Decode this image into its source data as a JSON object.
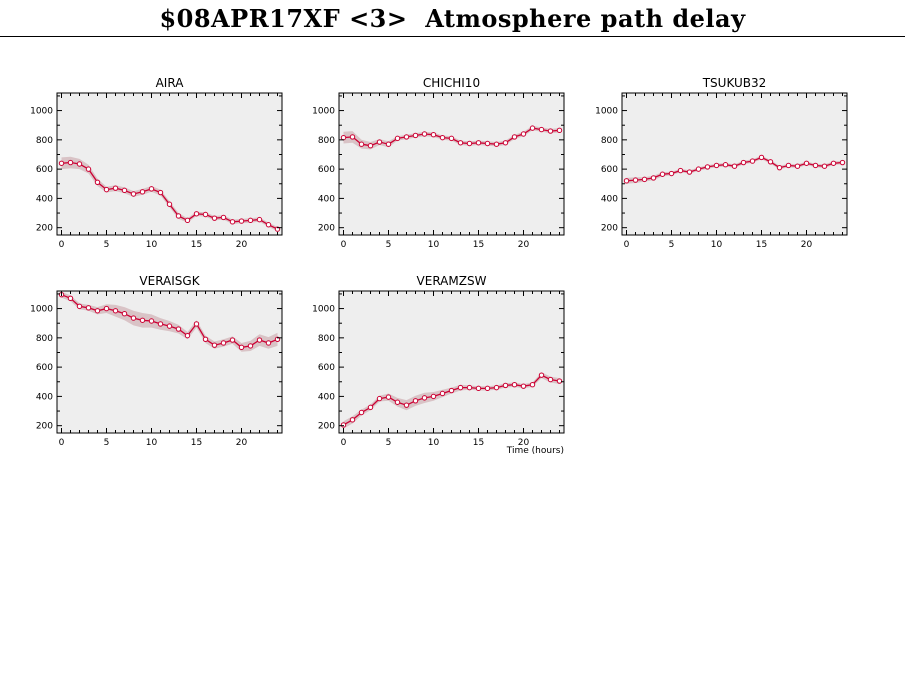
{
  "page": {
    "title": "$08APR17XF <3>  Atmosphere path delay",
    "xlabel": "Time (hours)"
  },
  "colors": {
    "panel_bg": "#eeeeee",
    "band": "#d9c3c6",
    "line": "#cc0033",
    "marker_fill": "#ffffff",
    "axis": "#000000"
  },
  "chart_data": [
    {
      "type": "line",
      "title": "AIRA",
      "xlim": [
        -0.5,
        24.5
      ],
      "ylim": [
        150,
        1120
      ],
      "xticks": [
        0,
        5,
        10,
        15,
        20
      ],
      "yticks": [
        200,
        400,
        600,
        800,
        1000
      ],
      "x": [
        0,
        1,
        2,
        3,
        4,
        5,
        6,
        7,
        8,
        9,
        10,
        11,
        12,
        13,
        14,
        15,
        16,
        17,
        18,
        19,
        20,
        21,
        22,
        23,
        24
      ],
      "series": [
        {
          "values": [
            640,
            645,
            635,
            600,
            510,
            460,
            470,
            455,
            430,
            445,
            465,
            440,
            360,
            280,
            250,
            295,
            290,
            265,
            270,
            240,
            245,
            250,
            255,
            220,
            190
          ],
          "band": [
            40,
            40,
            35,
            30,
            25,
            20,
            20,
            20,
            20,
            20,
            20,
            20,
            20,
            20,
            15,
            15,
            15,
            15,
            15,
            15,
            15,
            15,
            15,
            15,
            15
          ]
        }
      ]
    },
    {
      "type": "line",
      "title": "CHICHI10",
      "xlim": [
        -0.5,
        24.5
      ],
      "ylim": [
        150,
        1120
      ],
      "xticks": [
        0,
        5,
        10,
        15,
        20
      ],
      "yticks": [
        200,
        400,
        600,
        800,
        1000
      ],
      "x": [
        0,
        1,
        2,
        3,
        4,
        5,
        6,
        7,
        8,
        9,
        10,
        11,
        12,
        13,
        14,
        15,
        16,
        17,
        18,
        19,
        20,
        21,
        22,
        23,
        24
      ],
      "series": [
        {
          "values": [
            815,
            820,
            770,
            760,
            785,
            770,
            810,
            820,
            830,
            840,
            835,
            815,
            810,
            780,
            775,
            780,
            775,
            770,
            780,
            820,
            840,
            880,
            870,
            860,
            865
          ],
          "band": [
            40,
            40,
            30,
            25,
            20,
            20,
            15,
            15,
            15,
            15,
            15,
            15,
            15,
            15,
            15,
            15,
            15,
            15,
            15,
            15,
            15,
            15,
            15,
            15,
            15
          ]
        }
      ]
    },
    {
      "type": "line",
      "title": "TSUKUB32",
      "xlim": [
        -0.5,
        24.5
      ],
      "ylim": [
        150,
        1120
      ],
      "xticks": [
        0,
        5,
        10,
        15,
        20
      ],
      "yticks": [
        200,
        400,
        600,
        800,
        1000
      ],
      "x": [
        0,
        1,
        2,
        3,
        4,
        5,
        6,
        7,
        8,
        9,
        10,
        11,
        12,
        13,
        14,
        15,
        16,
        17,
        18,
        19,
        20,
        21,
        22,
        23,
        24
      ],
      "series": [
        {
          "values": [
            520,
            525,
            530,
            540,
            565,
            570,
            590,
            580,
            600,
            615,
            625,
            630,
            620,
            645,
            655,
            680,
            650,
            610,
            625,
            620,
            640,
            625,
            620,
            640,
            645
          ],
          "band": [
            20,
            20,
            15,
            15,
            15,
            12,
            12,
            12,
            12,
            12,
            12,
            12,
            12,
            12,
            12,
            12,
            12,
            12,
            12,
            12,
            12,
            12,
            12,
            12,
            12
          ]
        }
      ]
    },
    {
      "type": "line",
      "title": "VERAISGK",
      "xlim": [
        -0.5,
        24.5
      ],
      "ylim": [
        150,
        1120
      ],
      "xticks": [
        0,
        5,
        10,
        15,
        20
      ],
      "yticks": [
        200,
        400,
        600,
        800,
        1000
      ],
      "x": [
        0,
        1,
        2,
        3,
        4,
        5,
        6,
        7,
        8,
        9,
        10,
        11,
        12,
        13,
        14,
        15,
        16,
        17,
        18,
        19,
        20,
        21,
        22,
        23,
        24
      ],
      "series": [
        {
          "values": [
            1095,
            1070,
            1015,
            1005,
            985,
            1000,
            985,
            965,
            935,
            920,
            915,
            895,
            880,
            860,
            815,
            895,
            790,
            750,
            765,
            785,
            735,
            745,
            785,
            765,
            790
          ],
          "band": [
            20,
            20,
            20,
            20,
            25,
            30,
            40,
            45,
            50,
            50,
            45,
            40,
            35,
            30,
            25,
            25,
            25,
            25,
            25,
            25,
            30,
            35,
            40,
            40,
            45
          ]
        }
      ]
    },
    {
      "type": "line",
      "title": "VERAMZSW",
      "xlim": [
        -0.5,
        24.5
      ],
      "ylim": [
        150,
        1120
      ],
      "xticks": [
        0,
        5,
        10,
        15,
        20
      ],
      "yticks": [
        200,
        400,
        600,
        800,
        1000
      ],
      "xlabel": "Time (hours)",
      "x": [
        0,
        1,
        2,
        3,
        4,
        5,
        6,
        7,
        8,
        9,
        10,
        11,
        12,
        13,
        14,
        15,
        16,
        17,
        18,
        19,
        20,
        21,
        22,
        23,
        24
      ],
      "series": [
        {
          "values": [
            205,
            240,
            290,
            325,
            385,
            395,
            360,
            340,
            370,
            390,
            400,
            420,
            440,
            460,
            460,
            455,
            455,
            460,
            475,
            480,
            470,
            480,
            545,
            515,
            505
          ],
          "band": [
            25,
            25,
            20,
            20,
            20,
            25,
            30,
            35,
            35,
            35,
            30,
            25,
            20,
            20,
            15,
            15,
            15,
            15,
            15,
            15,
            15,
            15,
            20,
            20,
            20
          ]
        }
      ]
    }
  ]
}
